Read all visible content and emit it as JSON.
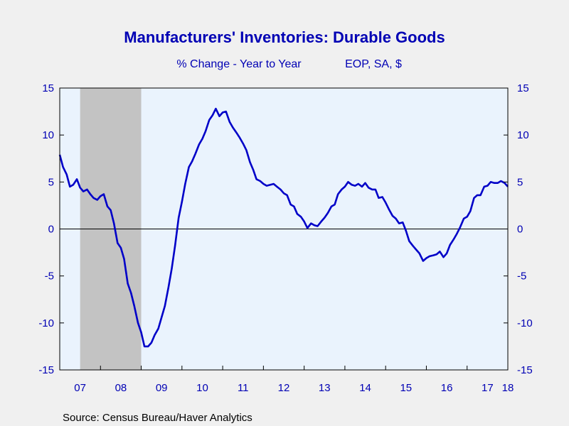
{
  "chart_data": {
    "type": "line",
    "title": "Manufacturers' Inventories: Durable Goods",
    "subtitle_left": "% Change - Year to Year",
    "subtitle_right": "EOP, SA, $",
    "source": "Source:  Census Bureau/Haver Analytics",
    "xlim": [
      2007.0,
      2018.0
    ],
    "ylim": [
      -15,
      15
    ],
    "y_ticks": [
      15,
      10,
      5,
      0,
      -5,
      -10,
      -15
    ],
    "x_tick_labels": [
      {
        "label": "07",
        "year": 2007
      },
      {
        "label": "08",
        "year": 2008
      },
      {
        "label": "09",
        "year": 2009
      },
      {
        "label": "10",
        "year": 2010
      },
      {
        "label": "11",
        "year": 2011
      },
      {
        "label": "12",
        "year": 2012
      },
      {
        "label": "13",
        "year": 2013
      },
      {
        "label": "14",
        "year": 2014
      },
      {
        "label": "15",
        "year": 2015
      },
      {
        "label": "16",
        "year": 2016
      },
      {
        "label": "17",
        "year": 2017
      },
      {
        "label": "18",
        "year": 2018
      }
    ],
    "recession_band": [
      2007.5,
      2009.0
    ],
    "colors": {
      "line": "#0000c8",
      "text": "#0000b4",
      "plot_bg": "#eaf3fd",
      "recession": "#c3c3c3",
      "page_bg": "#f0f0f0"
    },
    "series": [
      {
        "values": [
          [
            2007.0,
            7.9
          ],
          [
            2007.08,
            6.6
          ],
          [
            2007.17,
            5.8
          ],
          [
            2007.25,
            4.5
          ],
          [
            2007.33,
            4.7
          ],
          [
            2007.42,
            5.3
          ],
          [
            2007.5,
            4.4
          ],
          [
            2007.58,
            4.0
          ],
          [
            2007.67,
            4.2
          ],
          [
            2007.75,
            3.7
          ],
          [
            2007.83,
            3.3
          ],
          [
            2007.92,
            3.1
          ],
          [
            2008.0,
            3.5
          ],
          [
            2008.08,
            3.7
          ],
          [
            2008.17,
            2.4
          ],
          [
            2008.25,
            2.0
          ],
          [
            2008.33,
            0.6
          ],
          [
            2008.42,
            -1.5
          ],
          [
            2008.5,
            -2.0
          ],
          [
            2008.58,
            -3.2
          ],
          [
            2008.67,
            -5.8
          ],
          [
            2008.75,
            -6.8
          ],
          [
            2008.83,
            -8.2
          ],
          [
            2008.92,
            -10.0
          ],
          [
            2009.0,
            -11.0
          ],
          [
            2009.08,
            -12.5
          ],
          [
            2009.17,
            -12.5
          ],
          [
            2009.25,
            -12.1
          ],
          [
            2009.33,
            -11.3
          ],
          [
            2009.42,
            -10.6
          ],
          [
            2009.5,
            -9.4
          ],
          [
            2009.58,
            -8.2
          ],
          [
            2009.67,
            -6.2
          ],
          [
            2009.75,
            -4.2
          ],
          [
            2009.83,
            -1.8
          ],
          [
            2009.92,
            1.2
          ],
          [
            2010.0,
            2.9
          ],
          [
            2010.08,
            4.8
          ],
          [
            2010.17,
            6.6
          ],
          [
            2010.25,
            7.2
          ],
          [
            2010.33,
            8.0
          ],
          [
            2010.42,
            9.0
          ],
          [
            2010.5,
            9.6
          ],
          [
            2010.58,
            10.4
          ],
          [
            2010.67,
            11.6
          ],
          [
            2010.75,
            12.1
          ],
          [
            2010.83,
            12.8
          ],
          [
            2010.92,
            12.0
          ],
          [
            2011.0,
            12.4
          ],
          [
            2011.08,
            12.5
          ],
          [
            2011.17,
            11.4
          ],
          [
            2011.25,
            10.8
          ],
          [
            2011.33,
            10.3
          ],
          [
            2011.42,
            9.7
          ],
          [
            2011.5,
            9.1
          ],
          [
            2011.58,
            8.4
          ],
          [
            2011.67,
            7.1
          ],
          [
            2011.75,
            6.3
          ],
          [
            2011.83,
            5.3
          ],
          [
            2011.92,
            5.1
          ],
          [
            2012.0,
            4.8
          ],
          [
            2012.08,
            4.6
          ],
          [
            2012.17,
            4.7
          ],
          [
            2012.25,
            4.8
          ],
          [
            2012.33,
            4.5
          ],
          [
            2012.42,
            4.2
          ],
          [
            2012.5,
            3.8
          ],
          [
            2012.58,
            3.6
          ],
          [
            2012.67,
            2.6
          ],
          [
            2012.75,
            2.4
          ],
          [
            2012.83,
            1.6
          ],
          [
            2012.92,
            1.3
          ],
          [
            2013.0,
            0.8
          ],
          [
            2013.08,
            0.1
          ],
          [
            2013.17,
            0.6
          ],
          [
            2013.25,
            0.4
          ],
          [
            2013.33,
            0.3
          ],
          [
            2013.42,
            0.8
          ],
          [
            2013.5,
            1.2
          ],
          [
            2013.58,
            1.7
          ],
          [
            2013.67,
            2.4
          ],
          [
            2013.75,
            2.6
          ],
          [
            2013.83,
            3.7
          ],
          [
            2013.92,
            4.2
          ],
          [
            2014.0,
            4.5
          ],
          [
            2014.08,
            5.0
          ],
          [
            2014.17,
            4.7
          ],
          [
            2014.25,
            4.6
          ],
          [
            2014.33,
            4.8
          ],
          [
            2014.42,
            4.5
          ],
          [
            2014.5,
            4.9
          ],
          [
            2014.58,
            4.4
          ],
          [
            2014.67,
            4.2
          ],
          [
            2014.75,
            4.2
          ],
          [
            2014.83,
            3.3
          ],
          [
            2014.92,
            3.4
          ],
          [
            2015.0,
            2.8
          ],
          [
            2015.08,
            2.1
          ],
          [
            2015.17,
            1.4
          ],
          [
            2015.25,
            1.1
          ],
          [
            2015.33,
            0.6
          ],
          [
            2015.42,
            0.7
          ],
          [
            2015.5,
            -0.2
          ],
          [
            2015.58,
            -1.3
          ],
          [
            2015.67,
            -1.8
          ],
          [
            2015.75,
            -2.2
          ],
          [
            2015.83,
            -2.6
          ],
          [
            2015.92,
            -3.4
          ],
          [
            2016.0,
            -3.1
          ],
          [
            2016.08,
            -2.9
          ],
          [
            2016.17,
            -2.8
          ],
          [
            2016.25,
            -2.7
          ],
          [
            2016.33,
            -2.4
          ],
          [
            2016.42,
            -3.0
          ],
          [
            2016.5,
            -2.6
          ],
          [
            2016.58,
            -1.7
          ],
          [
            2016.67,
            -1.1
          ],
          [
            2016.75,
            -0.5
          ],
          [
            2016.83,
            0.2
          ],
          [
            2016.92,
            1.1
          ],
          [
            2017.0,
            1.3
          ],
          [
            2017.08,
            1.9
          ],
          [
            2017.17,
            3.3
          ],
          [
            2017.25,
            3.6
          ],
          [
            2017.33,
            3.6
          ],
          [
            2017.42,
            4.5
          ],
          [
            2017.5,
            4.6
          ],
          [
            2017.58,
            5.0
          ],
          [
            2017.67,
            4.9
          ],
          [
            2017.75,
            4.9
          ],
          [
            2017.83,
            5.1
          ],
          [
            2017.92,
            4.9
          ],
          [
            2018.0,
            4.5
          ]
        ]
      }
    ]
  }
}
